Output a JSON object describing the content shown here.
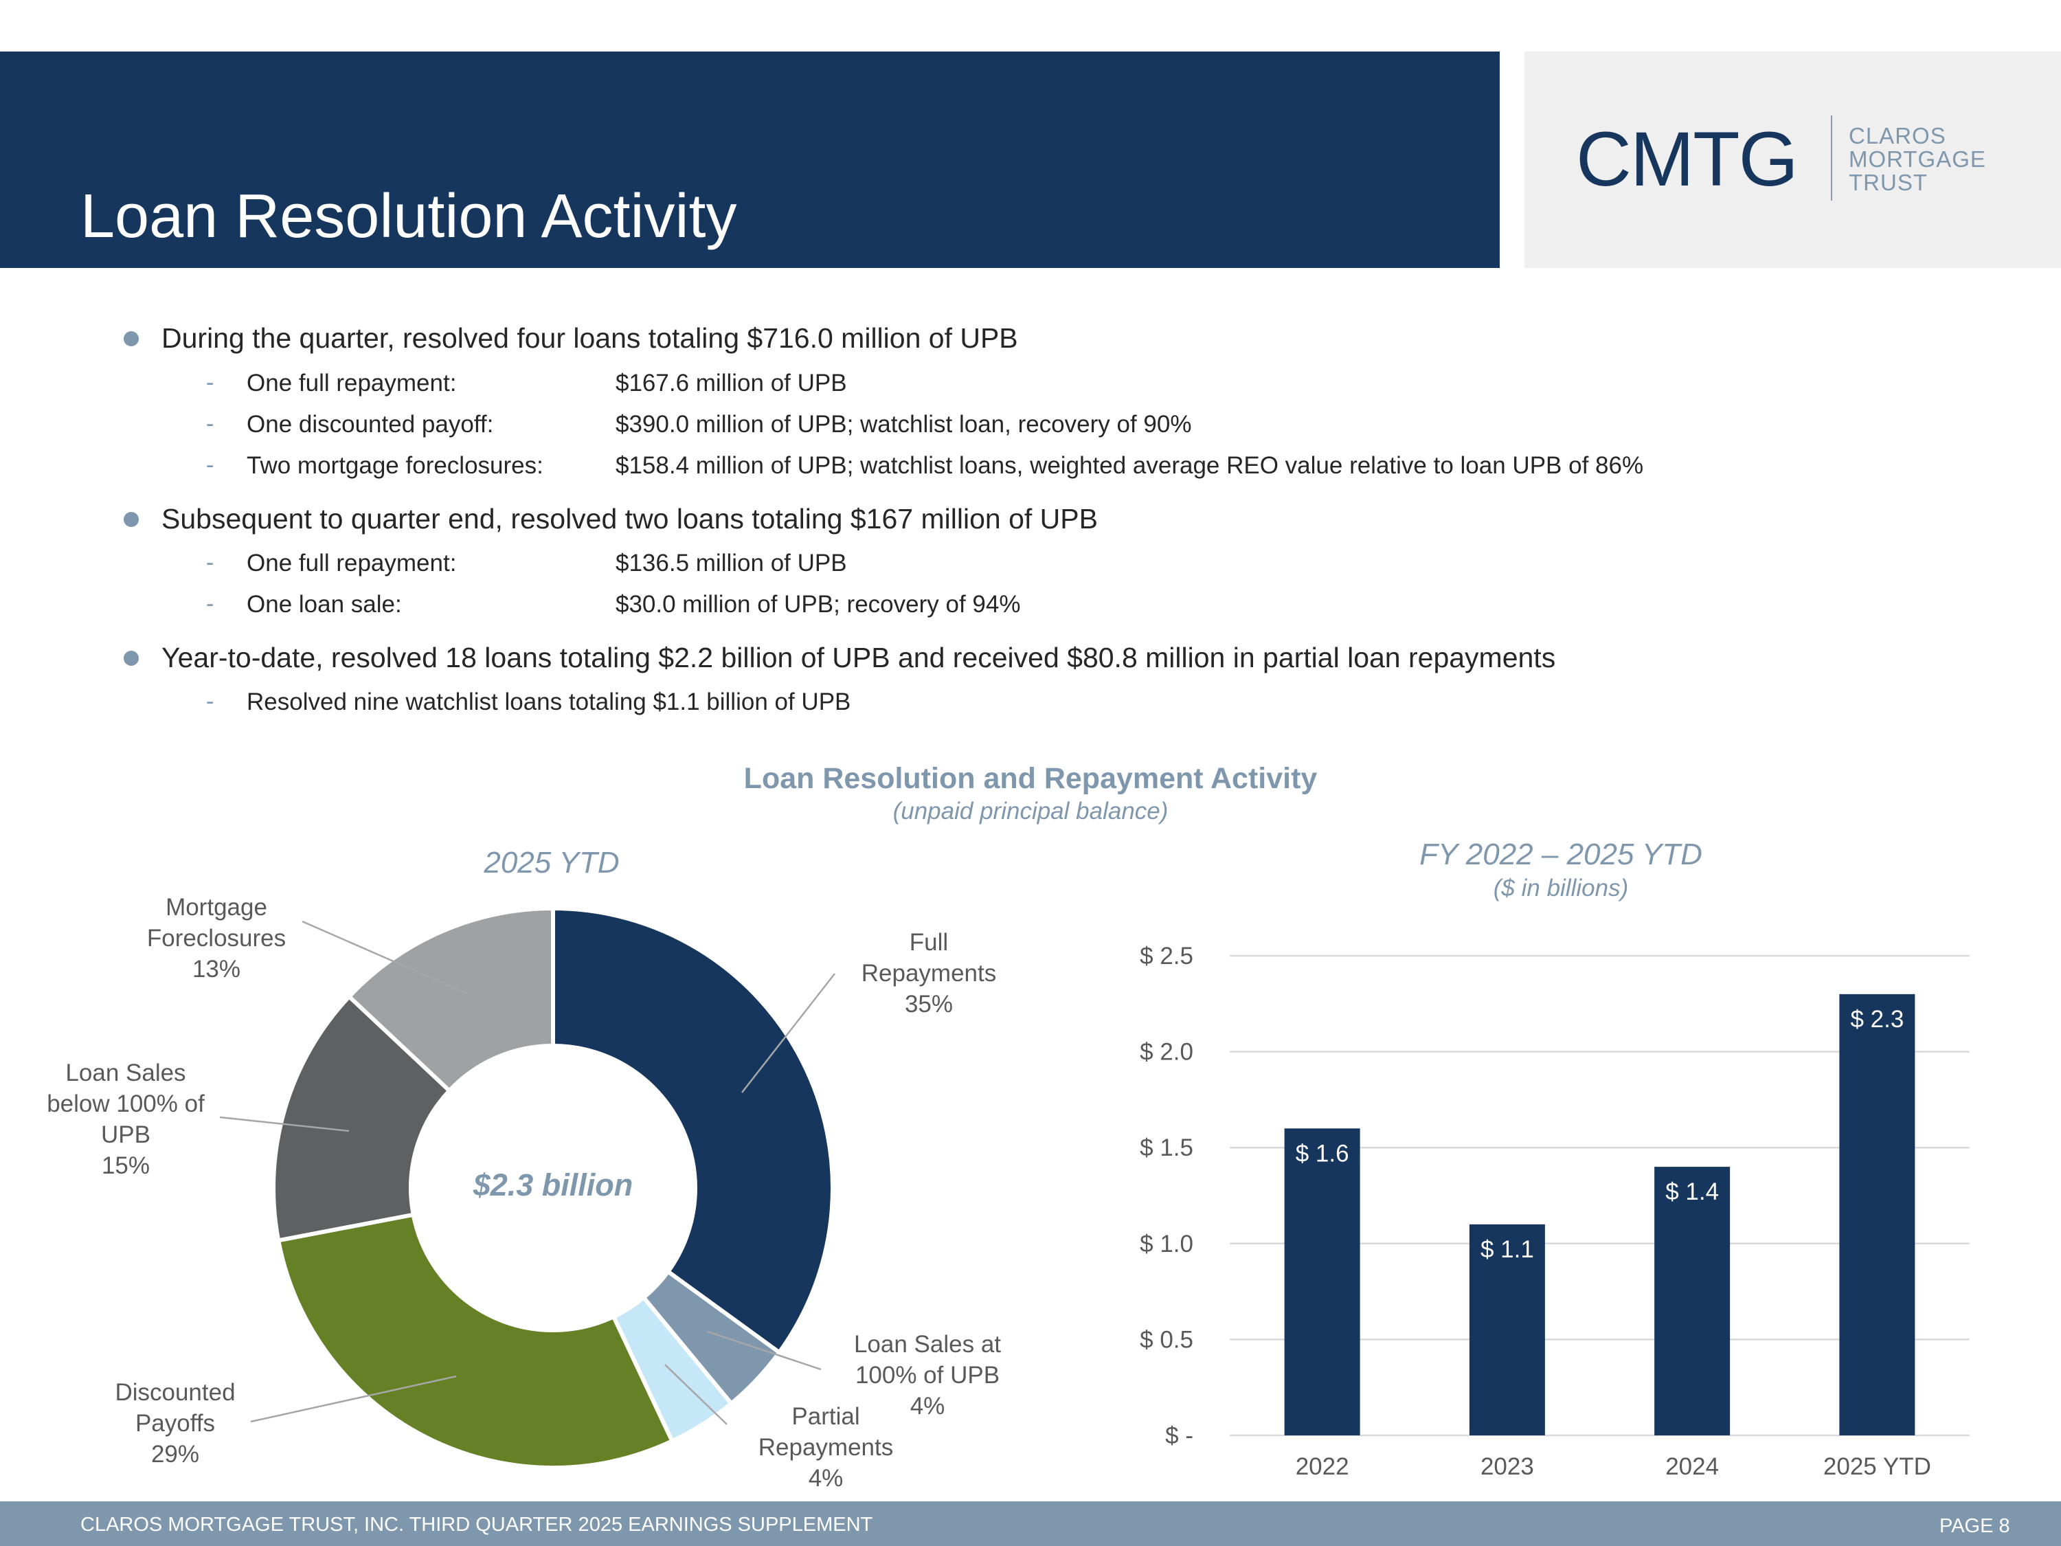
{
  "header": {
    "title": "Loan Resolution Activity"
  },
  "logo": {
    "mark": "CMTG",
    "words": [
      "CLAROS",
      "MORTGAGE",
      "TRUST"
    ]
  },
  "bullets": [
    {
      "text": "During the quarter, resolved four loans totaling $716.0 million of UPB",
      "subs": [
        {
          "label": "One full repayment:",
          "detail": "$167.6 million of UPB"
        },
        {
          "label": "One discounted payoff:",
          "detail": "$390.0 million of UPB; watchlist loan, recovery of 90%"
        },
        {
          "label": "Two mortgage foreclosures:",
          "detail": "$158.4 million of UPB; watchlist loans, weighted average REO value relative to loan UPB of 86%"
        }
      ]
    },
    {
      "text": "Subsequent to quarter end, resolved two loans totaling $167 million of UPB",
      "subs": [
        {
          "label": "One full repayment:",
          "detail": "$136.5 million of UPB"
        },
        {
          "label": "One loan sale:",
          "detail": "$30.0 million of UPB; recovery of 94%"
        }
      ]
    },
    {
      "text": "Year-to-date, resolved 18 loans totaling $2.2 billion of UPB and received $80.8 million in partial loan repayments",
      "subs": [
        {
          "label": "Resolved nine watchlist loans totaling $1.1 billion of UPB",
          "detail": ""
        }
      ]
    }
  ],
  "chart_section": {
    "title": "Loan Resolution and Repayment Activity",
    "subtitle": "(unpaid principal balance)"
  },
  "chart_data": [
    {
      "type": "pie",
      "variant": "donut",
      "title": "2025 YTD",
      "center_label": "$2.3 billion",
      "slices": [
        {
          "name": "Full Repayments",
          "label_lines": [
            "Full",
            "Repayments"
          ],
          "value": 35,
          "pct_label": "35%",
          "color": "#17365D"
        },
        {
          "name": "Loan Sales at 100% of UPB",
          "label_lines": [
            "Loan Sales at",
            "100% of UPB"
          ],
          "value": 4,
          "pct_label": "4%",
          "color": "#7F97AD"
        },
        {
          "name": "Partial Repayments",
          "label_lines": [
            "Partial",
            "Repayments"
          ],
          "value": 4,
          "pct_label": "4%",
          "color": "#C5E7F7"
        },
        {
          "name": "Discounted Payoffs",
          "label_lines": [
            "Discounted",
            "Payoffs"
          ],
          "value": 29,
          "pct_label": "29%",
          "color": "#668026"
        },
        {
          "name": "Loan Sales below 100% of UPB",
          "label_lines": [
            "Loan Sales",
            "below 100% of",
            "UPB"
          ],
          "value": 15,
          "pct_label": "15%",
          "color": "#5E6062"
        },
        {
          "name": "Mortgage Foreclosures",
          "label_lines": [
            "Mortgage",
            "Foreclosures"
          ],
          "value": 13,
          "pct_label": "13%",
          "color": "#A0A1A3"
        }
      ]
    },
    {
      "type": "bar",
      "title": "FY 2022 – 2025 YTD",
      "subtitle": "($ in billions)",
      "categories": [
        "2022",
        "2023",
        "2024",
        "2025 YTD"
      ],
      "values": [
        1.6,
        1.1,
        1.4,
        2.3
      ],
      "value_labels": [
        "$ 1.6",
        "$ 1.1",
        "$ 1.4",
        "$ 2.3"
      ],
      "ylim": [
        0,
        2.5
      ],
      "yticks": [
        0,
        0.5,
        1.0,
        1.5,
        2.0,
        2.5
      ],
      "ytick_labels": [
        "$ -",
        "$ 0.5",
        "$ 1.0",
        "$ 1.5",
        "$ 2.0",
        "$ 2.5"
      ],
      "bar_color": "#17365D",
      "grid": true
    }
  ],
  "footer": {
    "text": "CLAROS MORTGAGE TRUST, INC. THIRD QUARTER 2025 EARNINGS SUPPLEMENT",
    "page": "PAGE 8"
  }
}
